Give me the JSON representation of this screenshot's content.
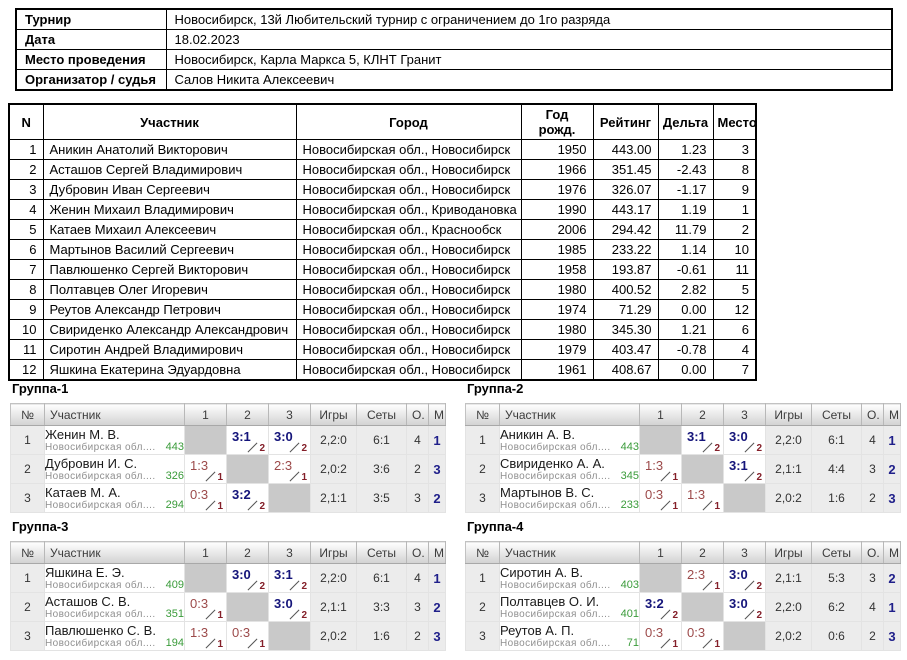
{
  "info": {
    "rows": [
      {
        "label": "Турнир",
        "value": "Новосибирск, 13й Любительский турнир с ограничением до 1го разряда"
      },
      {
        "label": "Дата",
        "value": "18.02.2023"
      },
      {
        "label": "Место проведения",
        "value": "Новосибирск, Карла Маркса 5, КЛНТ Гранит"
      },
      {
        "label": "Организатор / судья",
        "value": "Салов Никита Алексеевич"
      }
    ]
  },
  "participants": {
    "headers": [
      "N",
      "Участник",
      "Город",
      "Год рожд.",
      "Рейтинг",
      "Дельта",
      "Место"
    ],
    "col_keys": [
      "number",
      "name",
      "city",
      "birth-year",
      "rating",
      "delta",
      "place"
    ],
    "rows": [
      [
        "1",
        "Аникин Анатолий Викторович",
        "Новосибирская обл., Новосибирск",
        "1950",
        "443.00",
        "1.23",
        "3"
      ],
      [
        "2",
        "Асташов Сергей Владимирович",
        "Новосибирская обл., Новосибирск",
        "1966",
        "351.45",
        "-2.43",
        "8"
      ],
      [
        "3",
        "Дубровин Иван Сергеевич",
        "Новосибирская обл., Новосибирск",
        "1976",
        "326.07",
        "-1.17",
        "9"
      ],
      [
        "4",
        "Женин Михаил Владимирович",
        "Новосибирская обл., Криводановка",
        "1990",
        "443.17",
        "1.19",
        "1"
      ],
      [
        "5",
        "Катаев Михаил Алексеевич",
        "Новосибирская обл., Краснообск",
        "2006",
        "294.42",
        "11.79",
        "2"
      ],
      [
        "6",
        "Мартынов Василий Сергеевич",
        "Новосибирская обл., Новосибирск",
        "1985",
        "233.22",
        "1.14",
        "10"
      ],
      [
        "7",
        "Павлюшенко Сергей Викторович",
        "Новосибирская обл., Новосибирск",
        "1958",
        "193.87",
        "-0.61",
        "11"
      ],
      [
        "8",
        "Полтавцев Олег Игоревич",
        "Новосибирская обл., Новосибирск",
        "1980",
        "400.52",
        "2.82",
        "5"
      ],
      [
        "9",
        "Реутов Александр Петрович",
        "Новосибирская обл., Новосибирск",
        "1974",
        "71.29",
        "0.00",
        "12"
      ],
      [
        "10",
        "Свириденко Александр Александрович",
        "Новосибирская обл., Новосибирск",
        "1980",
        "345.30",
        "1.21",
        "6"
      ],
      [
        "11",
        "Сиротин Андрей Владимирович",
        "Новосибирская обл., Новосибирск",
        "1979",
        "403.47",
        "-0.78",
        "4"
      ],
      [
        "12",
        "Яшкина Екатерина Эдуардовна",
        "Новосибирская обл., Новосибирск",
        "1961",
        "408.67",
        "0.00",
        "7"
      ]
    ]
  },
  "group_headers": [
    "№",
    "Участник",
    "1",
    "2",
    "3",
    "Игры",
    "Сеты",
    "О.",
    "М."
  ],
  "groups": [
    {
      "title": "Группа-1",
      "rows": [
        {
          "num": "1",
          "name": "Женин М. В.",
          "region": "Новосибирская обл....",
          "rating": "443",
          "matches": [
            {
              "type": "self"
            },
            {
              "type": "win",
              "score": "3:1",
              "pts": "2"
            },
            {
              "type": "win",
              "score": "3:0",
              "pts": "2"
            }
          ],
          "games": "2,2:0",
          "sets": "6:1",
          "points": "4",
          "place": "1"
        },
        {
          "num": "2",
          "name": "Дубровин И. С.",
          "region": "Новосибирская обл....",
          "rating": "326",
          "matches": [
            {
              "type": "loss",
              "score": "1:3",
              "pts": "1"
            },
            {
              "type": "self"
            },
            {
              "type": "loss",
              "score": "2:3",
              "pts": "1"
            }
          ],
          "games": "2,0:2",
          "sets": "3:6",
          "points": "2",
          "place": "3"
        },
        {
          "num": "3",
          "name": "Катаев М. А.",
          "region": "Новосибирская обл....",
          "rating": "294",
          "matches": [
            {
              "type": "loss",
              "score": "0:3",
              "pts": "1"
            },
            {
              "type": "win",
              "score": "3:2",
              "pts": "2"
            },
            {
              "type": "self"
            }
          ],
          "games": "2,1:1",
          "sets": "3:5",
          "points": "3",
          "place": "2"
        }
      ]
    },
    {
      "title": "Группа-2",
      "rows": [
        {
          "num": "1",
          "name": "Аникин А. В.",
          "region": "Новосибирская обл....",
          "rating": "443",
          "matches": [
            {
              "type": "self"
            },
            {
              "type": "win",
              "score": "3:1",
              "pts": "2"
            },
            {
              "type": "win",
              "score": "3:0",
              "pts": "2"
            }
          ],
          "games": "2,2:0",
          "sets": "6:1",
          "points": "4",
          "place": "1"
        },
        {
          "num": "2",
          "name": "Свириденко А. А.",
          "region": "Новосибирская обл....",
          "rating": "345",
          "matches": [
            {
              "type": "loss",
              "score": "1:3",
              "pts": "1"
            },
            {
              "type": "self"
            },
            {
              "type": "win",
              "score": "3:1",
              "pts": "2"
            }
          ],
          "games": "2,1:1",
          "sets": "4:4",
          "points": "3",
          "place": "2"
        },
        {
          "num": "3",
          "name": "Мартынов В. С.",
          "region": "Новосибирская обл....",
          "rating": "233",
          "matches": [
            {
              "type": "loss",
              "score": "0:3",
              "pts": "1"
            },
            {
              "type": "loss",
              "score": "1:3",
              "pts": "1"
            },
            {
              "type": "self"
            }
          ],
          "games": "2,0:2",
          "sets": "1:6",
          "points": "2",
          "place": "3"
        }
      ]
    },
    {
      "title": "Группа-3",
      "rows": [
        {
          "num": "1",
          "name": "Яшкина Е. Э.",
          "region": "Новосибирская обл....",
          "rating": "409",
          "matches": [
            {
              "type": "self"
            },
            {
              "type": "win",
              "score": "3:0",
              "pts": "2"
            },
            {
              "type": "win",
              "score": "3:1",
              "pts": "2"
            }
          ],
          "games": "2,2:0",
          "sets": "6:1",
          "points": "4",
          "place": "1"
        },
        {
          "num": "2",
          "name": "Асташов С. В.",
          "region": "Новосибирская обл....",
          "rating": "351",
          "matches": [
            {
              "type": "loss",
              "score": "0:3",
              "pts": "1"
            },
            {
              "type": "self"
            },
            {
              "type": "win",
              "score": "3:0",
              "pts": "2"
            }
          ],
          "games": "2,1:1",
          "sets": "3:3",
          "points": "3",
          "place": "2"
        },
        {
          "num": "3",
          "name": "Павлюшенко С. В.",
          "region": "Новосибирская обл....",
          "rating": "194",
          "matches": [
            {
              "type": "loss",
              "score": "1:3",
              "pts": "1"
            },
            {
              "type": "loss",
              "score": "0:3",
              "pts": "1"
            },
            {
              "type": "self"
            }
          ],
          "games": "2,0:2",
          "sets": "1:6",
          "points": "2",
          "place": "3"
        }
      ]
    },
    {
      "title": "Группа-4",
      "rows": [
        {
          "num": "1",
          "name": "Сиротин А. В.",
          "region": "Новосибирская обл....",
          "rating": "403",
          "matches": [
            {
              "type": "self"
            },
            {
              "type": "loss",
              "score": "2:3",
              "pts": "1"
            },
            {
              "type": "win",
              "score": "3:0",
              "pts": "2"
            }
          ],
          "games": "2,1:1",
          "sets": "5:3",
          "points": "3",
          "place": "2"
        },
        {
          "num": "2",
          "name": "Полтавцев О. И.",
          "region": "Новосибирская обл....",
          "rating": "401",
          "matches": [
            {
              "type": "win",
              "score": "3:2",
              "pts": "2"
            },
            {
              "type": "self"
            },
            {
              "type": "win",
              "score": "3:0",
              "pts": "2"
            }
          ],
          "games": "2,2:0",
          "sets": "6:2",
          "points": "4",
          "place": "1"
        },
        {
          "num": "3",
          "name": "Реутов А. П.",
          "region": "Новосибирская обл....",
          "rating": "71",
          "matches": [
            {
              "type": "loss",
              "score": "0:3",
              "pts": "1"
            },
            {
              "type": "loss",
              "score": "0:3",
              "pts": "1"
            },
            {
              "type": "self"
            }
          ],
          "games": "2,0:2",
          "sets": "0:6",
          "points": "2",
          "place": "3"
        }
      ]
    }
  ],
  "colors": {
    "win": "#14147a",
    "loss": "#9c4a4a",
    "points": "#841f29",
    "place": "#1f1f8a",
    "rating": "#3a9b3a",
    "region": "#8f8f8f"
  }
}
